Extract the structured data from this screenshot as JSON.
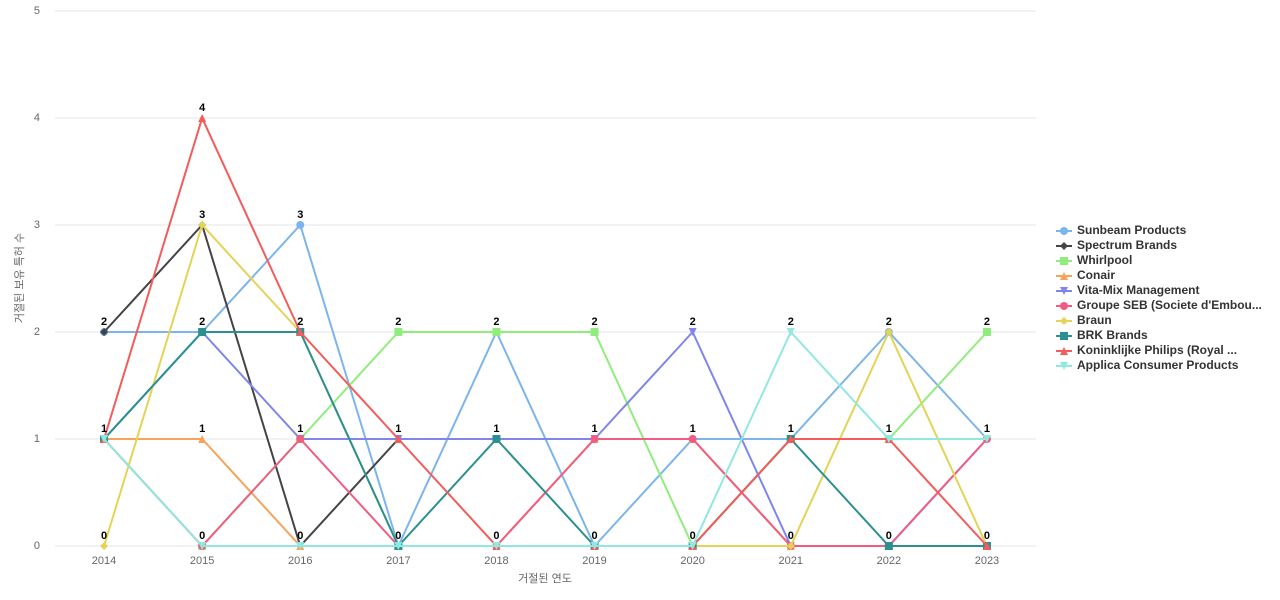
{
  "chart_data": {
    "type": "line",
    "x_label": "거절된 연도",
    "y_label": "거절된 보유 특허 수",
    "categories": [
      "2014",
      "2015",
      "2016",
      "2017",
      "2018",
      "2019",
      "2020",
      "2021",
      "2022",
      "2023"
    ],
    "ylim": [
      0,
      5
    ],
    "yticks": [
      0,
      1,
      2,
      3,
      4,
      5
    ],
    "grid": true,
    "series": [
      {
        "name": "Sunbeam Products",
        "color": "#7cb5ec",
        "marker": "circle",
        "values": [
          2,
          2,
          3,
          0,
          2,
          0,
          1,
          1,
          2,
          1
        ]
      },
      {
        "name": "Spectrum Brands",
        "color": "#434348",
        "marker": "diamond",
        "values": [
          2,
          3,
          0,
          1,
          null,
          null,
          null,
          null,
          null,
          null
        ]
      },
      {
        "name": "Whirlpool",
        "color": "#90ed7d",
        "marker": "square",
        "values": [
          1,
          0,
          1,
          2,
          2,
          2,
          0,
          1,
          1,
          2
        ]
      },
      {
        "name": "Conair",
        "color": "#f7a35c",
        "marker": "triangle",
        "values": [
          1,
          1,
          0,
          0,
          0,
          1,
          1,
          0,
          0,
          0
        ]
      },
      {
        "name": "Vita-Mix Management",
        "color": "#8085e9",
        "marker": "triangle-down",
        "values": [
          1,
          2,
          1,
          1,
          1,
          1,
          2,
          0,
          0,
          1
        ]
      },
      {
        "name": "Groupe SEB (Societe d'Embou...",
        "color": "#f15c80",
        "marker": "circle",
        "values": [
          1,
          0,
          1,
          0,
          0,
          1,
          1,
          0,
          0,
          1
        ]
      },
      {
        "name": "Braun",
        "color": "#e4d354",
        "marker": "diamond",
        "values": [
          0,
          3,
          2,
          0,
          0,
          0,
          0,
          0,
          2,
          0
        ]
      },
      {
        "name": "BRK Brands",
        "color": "#2b908f",
        "marker": "square",
        "values": [
          1,
          2,
          2,
          0,
          1,
          0,
          0,
          1,
          0,
          0
        ]
      },
      {
        "name": "Koninklijke Philips (Royal ...",
        "color": "#f45b5b",
        "marker": "triangle",
        "values": [
          1,
          4,
          2,
          1,
          0,
          0,
          0,
          1,
          1,
          0
        ]
      },
      {
        "name": "Applica Consumer Products",
        "color": "#91e8e1",
        "marker": "triangle-down",
        "values": [
          1,
          0,
          0,
          0,
          0,
          0,
          0,
          2,
          1,
          1
        ]
      }
    ]
  }
}
